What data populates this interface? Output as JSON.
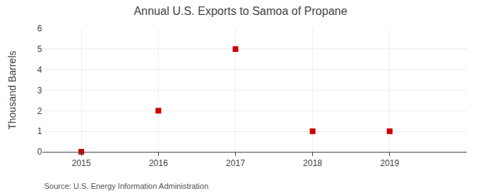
{
  "chart_data": {
    "type": "scatter",
    "title": "Annual U.S. Exports to Samoa of Propane",
    "ylabel": "Thousand Barrels",
    "annotations": [
      "Source: U.S. Energy Information Administration"
    ],
    "x": [
      2015,
      2016,
      2017,
      2018,
      2019
    ],
    "values": [
      0,
      2,
      5,
      1,
      1
    ],
    "color": "#cc0000",
    "marker": "square",
    "xlim": [
      2014.5,
      2020.0
    ],
    "xticks": [
      2015,
      2016,
      2017,
      2018,
      2019
    ],
    "ylim": [
      0,
      6
    ],
    "yticks": [
      0,
      1,
      2,
      3,
      4,
      5,
      6
    ],
    "grid": true
  }
}
